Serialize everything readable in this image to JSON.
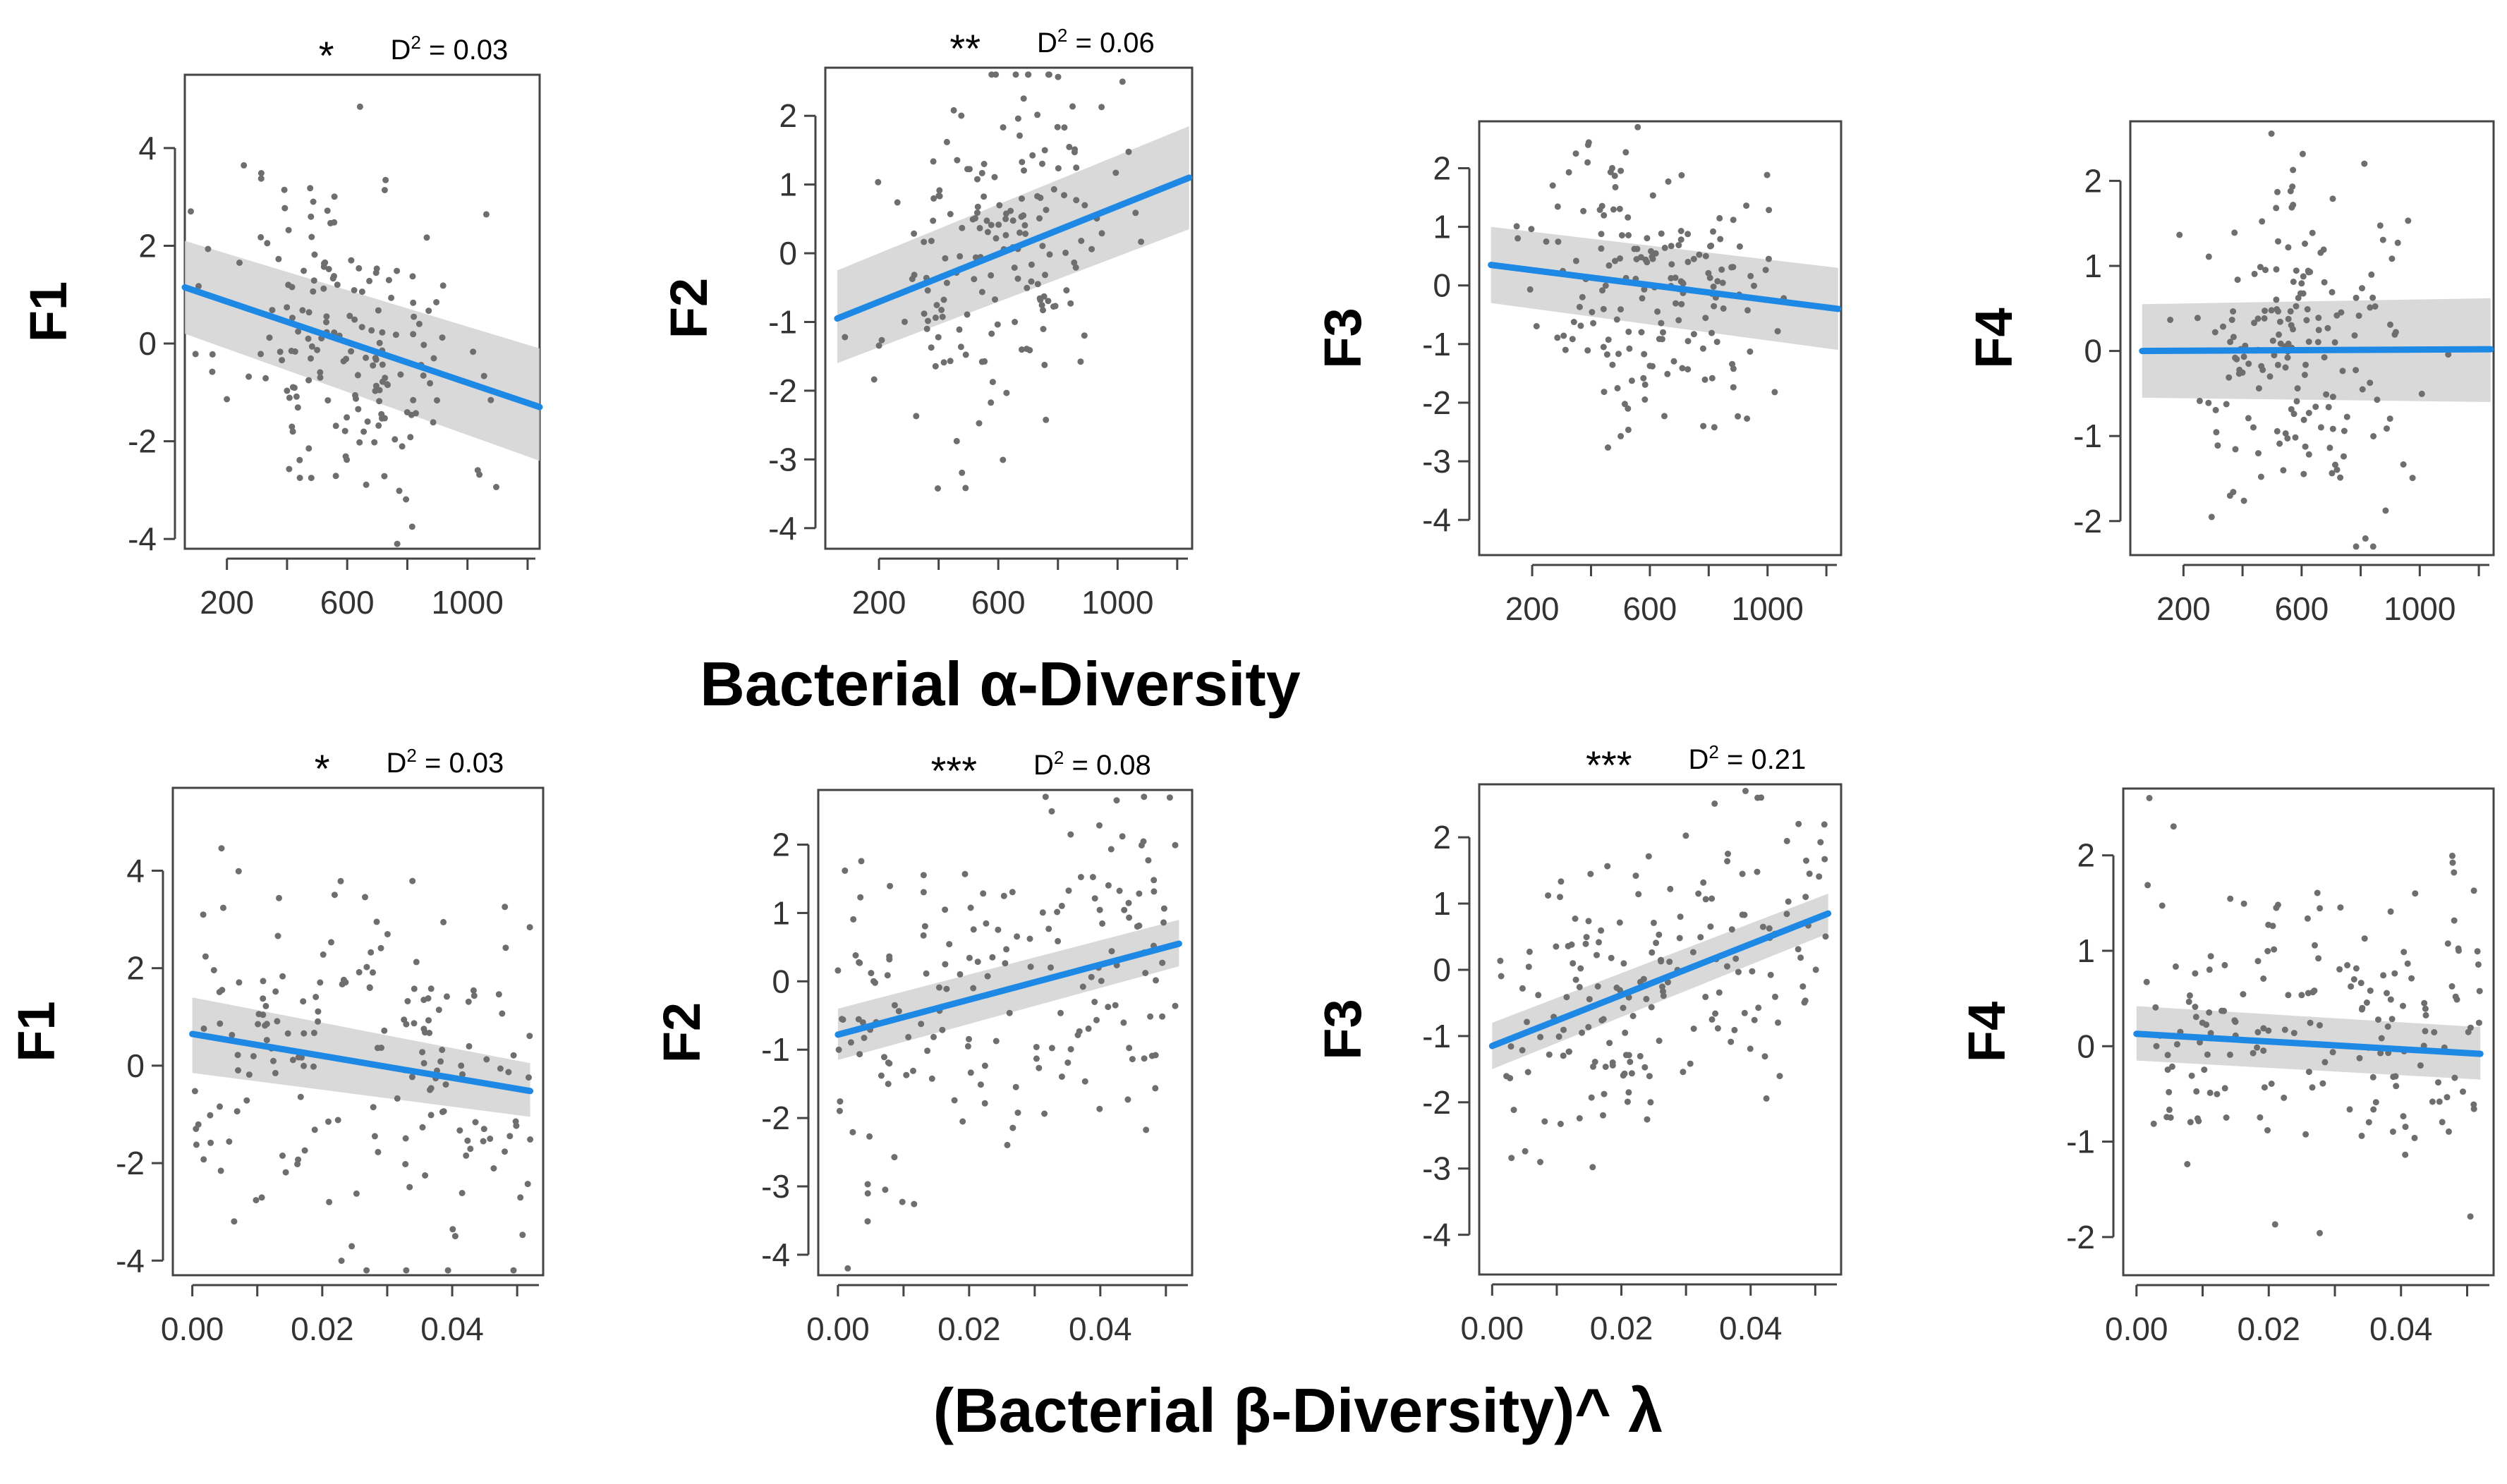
{
  "row_labels": {
    "alpha": "Bacterial α-Diversity",
    "beta": "(Bacterial β-Diversity)^ λ"
  },
  "colors": {
    "line": "#1e88e5",
    "ribbon": "#d2d2d2",
    "points": "#6e6e6e",
    "axis": "#444444"
  },
  "chart_data": [
    {
      "type": "scatter",
      "row": "alpha",
      "ylabel": "F1",
      "stars": "*",
      "d2_prefix": "D",
      "d2_sup": "2",
      "d2_value": " = 0.03",
      "xlim": [
        60,
        1240
      ],
      "ylim": [
        -4.2,
        5.5
      ],
      "xticks": [
        200,
        600,
        1000
      ],
      "xtick_labels": [
        "200",
        "600",
        "1000"
      ],
      "yticks": [
        -4,
        -2,
        0,
        2,
        4
      ],
      "ytick_labels": [
        "-4",
        "-2",
        "0",
        "2",
        "4"
      ],
      "fit": {
        "x": [
          60,
          1240
        ],
        "y": [
          1.15,
          -1.3
        ],
        "lower": [
          0.2,
          -2.4
        ],
        "upper": [
          2.1,
          -0.1
        ]
      },
      "n_points": 175,
      "x_center": 600,
      "x_spread": 200,
      "y_spread": 1.8,
      "seed": 11
    },
    {
      "type": "scatter",
      "row": "alpha",
      "ylabel": "F2",
      "stars": "**",
      "d2_prefix": "D",
      "d2_sup": "2",
      "d2_value": " = 0.06",
      "xlim": [
        20,
        1250
      ],
      "ylim": [
        -4.3,
        2.7
      ],
      "xticks": [
        200,
        600,
        1000
      ],
      "xtick_labels": [
        "200",
        "600",
        "1000"
      ],
      "yticks": [
        -4,
        -3,
        -2,
        -1,
        0,
        1,
        2
      ],
      "ytick_labels": [
        "-4",
        "-3",
        "-2",
        "-1",
        "0",
        "1",
        "2"
      ],
      "fit": {
        "x": [
          60,
          1240
        ],
        "y": [
          -0.95,
          1.1
        ],
        "lower": [
          -1.6,
          0.35
        ],
        "upper": [
          -0.25,
          1.85
        ]
      },
      "n_points": 175,
      "x_center": 600,
      "x_spread": 190,
      "y_spread": 1.2,
      "seed": 23
    },
    {
      "type": "scatter",
      "row": "alpha",
      "ylabel": "F3",
      "stars": "",
      "d2_prefix": "",
      "d2_sup": "",
      "d2_value": "",
      "xlim": [
        20,
        1250
      ],
      "ylim": [
        -4.6,
        2.8
      ],
      "xticks": [
        200,
        600,
        1000
      ],
      "xtick_labels": [
        "200",
        "600",
        "1000"
      ],
      "yticks": [
        -4,
        -3,
        -2,
        -1,
        0,
        1,
        2
      ],
      "ytick_labels": [
        "-4",
        "-3",
        "-2",
        "-1",
        "0",
        "1",
        "2"
      ],
      "fit": {
        "x": [
          60,
          1240
        ],
        "y": [
          0.35,
          -0.4
        ],
        "lower": [
          -0.3,
          -1.1
        ],
        "upper": [
          1.0,
          0.3
        ]
      },
      "n_points": 175,
      "x_center": 600,
      "x_spread": 190,
      "y_spread": 1.2,
      "seed": 37
    },
    {
      "type": "scatter",
      "row": "alpha",
      "ylabel": "F4",
      "stars": "",
      "d2_prefix": "",
      "d2_sup": "",
      "d2_value": "",
      "xlim": [
        20,
        1250
      ],
      "ylim": [
        -2.4,
        2.7
      ],
      "xticks": [
        200,
        600,
        1000
      ],
      "xtick_labels": [
        "200",
        "600",
        "1000"
      ],
      "yticks": [
        -2,
        -1,
        0,
        1,
        2
      ],
      "ytick_labels": [
        "-2",
        "-1",
        "0",
        "1",
        "2"
      ],
      "fit": {
        "x": [
          60,
          1240
        ],
        "y": [
          0.0,
          0.02
        ],
        "lower": [
          -0.55,
          -0.6
        ],
        "upper": [
          0.55,
          0.62
        ]
      },
      "n_points": 175,
      "x_center": 600,
      "x_spread": 190,
      "y_spread": 0.95,
      "seed": 41
    },
    {
      "type": "scatter",
      "row": "beta",
      "ylabel": "F1",
      "stars": "*",
      "d2_prefix": "D",
      "d2_sup": "2",
      "d2_value": " = 0.03",
      "xlim": [
        -0.003,
        0.054
      ],
      "ylim": [
        -4.3,
        5.7
      ],
      "xticks": [
        0.0,
        0.02,
        0.04
      ],
      "xtick_labels": [
        "0.00",
        "0.02",
        "0.04"
      ],
      "yticks": [
        -4,
        -2,
        0,
        2,
        4
      ],
      "ytick_labels": [
        "-4",
        "-2",
        "0",
        "2",
        "4"
      ],
      "fit": {
        "x": [
          0.0,
          0.052
        ],
        "y": [
          0.65,
          -0.52
        ],
        "lower": [
          -0.15,
          -1.05
        ],
        "upper": [
          1.4,
          0.05
        ]
      },
      "n_points": 175,
      "x_center": 0.026,
      "x_spread": 0.026,
      "y_spread": 1.8,
      "uniform_x": true,
      "seed": 53
    },
    {
      "type": "scatter",
      "row": "beta",
      "ylabel": "F2",
      "stars": "***",
      "d2_prefix": "D",
      "d2_sup": "2",
      "d2_value": " = 0.08",
      "xlim": [
        -0.003,
        0.054
      ],
      "ylim": [
        -4.3,
        2.8
      ],
      "xticks": [
        0.0,
        0.02,
        0.04
      ],
      "xtick_labels": [
        "0.00",
        "0.02",
        "0.04"
      ],
      "yticks": [
        -4,
        -3,
        -2,
        -1,
        0,
        1,
        2
      ],
      "ytick_labels": [
        "-4",
        "-3",
        "-2",
        "-1",
        "0",
        "1",
        "2"
      ],
      "fit": {
        "x": [
          0.0,
          0.052
        ],
        "y": [
          -0.78,
          0.55
        ],
        "lower": [
          -1.15,
          0.22
        ],
        "upper": [
          -0.4,
          0.9
        ]
      },
      "n_points": 175,
      "x_center": 0.026,
      "x_spread": 0.026,
      "y_spread": 1.2,
      "uniform_x": true,
      "seed": 67
    },
    {
      "type": "scatter",
      "row": "beta",
      "ylabel": "F3",
      "stars": "***",
      "d2_prefix": "D",
      "d2_sup": "2",
      "d2_value": " = 0.21",
      "xlim": [
        -0.002,
        0.054
      ],
      "ylim": [
        -4.6,
        2.8
      ],
      "xticks": [
        0.0,
        0.02,
        0.04
      ],
      "xtick_labels": [
        "0.00",
        "0.02",
        "0.04"
      ],
      "yticks": [
        -4,
        -3,
        -2,
        -1,
        0,
        1,
        2
      ],
      "ytick_labels": [
        "-4",
        "-3",
        "-2",
        "-1",
        "0",
        "1",
        "2"
      ],
      "fit": {
        "x": [
          0.0,
          0.052
        ],
        "y": [
          -1.15,
          0.85
        ],
        "lower": [
          -1.5,
          0.55
        ],
        "upper": [
          -0.8,
          1.15
        ]
      },
      "n_points": 175,
      "x_center": 0.026,
      "x_spread": 0.026,
      "y_spread": 1.0,
      "uniform_x": true,
      "seed": 79
    },
    {
      "type": "scatter",
      "row": "beta",
      "ylabel": "F4",
      "stars": "",
      "d2_prefix": "",
      "d2_sup": "",
      "d2_value": "",
      "xlim": [
        -0.002,
        0.054
      ],
      "ylim": [
        -2.4,
        2.7
      ],
      "xticks": [
        0.0,
        0.02,
        0.04
      ],
      "xtick_labels": [
        "0.00",
        "0.02",
        "0.04"
      ],
      "yticks": [
        -2,
        -1,
        0,
        1,
        2
      ],
      "ytick_labels": [
        "-2",
        "-1",
        "0",
        "1",
        "2"
      ],
      "fit": {
        "x": [
          0.0,
          0.052
        ],
        "y": [
          0.13,
          -0.08
        ],
        "lower": [
          -0.15,
          -0.35
        ],
        "upper": [
          0.42,
          0.2
        ]
      },
      "n_points": 175,
      "x_center": 0.026,
      "x_spread": 0.026,
      "y_spread": 0.95,
      "uniform_x": true,
      "seed": 97
    }
  ]
}
